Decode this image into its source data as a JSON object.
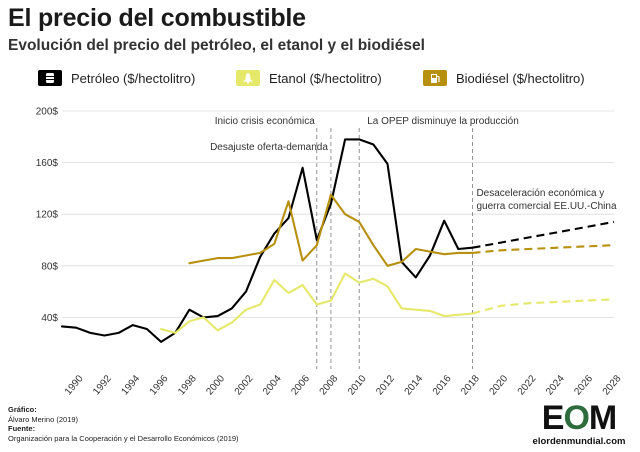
{
  "header": {
    "title": "El precio del combustible",
    "subtitle": "Evolución del precio del petróleo, el etanol y el biodiésel"
  },
  "legend": [
    {
      "label": "Petróleo ($/hectolitro)",
      "color": "#000000",
      "icon": "oil-barrel-icon"
    },
    {
      "label": "Etanol ($/hectolitro)",
      "color": "#e6e86a",
      "icon": "corn-icon"
    },
    {
      "label": "Biodiésel ($/hectolitro)",
      "color": "#b8900f",
      "icon": "fuel-pump-icon"
    }
  ],
  "chart_data": {
    "type": "line",
    "x_range": [
      1989,
      2028
    ],
    "ylim": [
      0,
      200
    ],
    "y_ticks": [
      {
        "value": 40,
        "label": "40$"
      },
      {
        "value": 80,
        "label": "80$"
      },
      {
        "value": 120,
        "label": "120$"
      },
      {
        "value": 160,
        "label": "160$"
      },
      {
        "value": 200,
        "label": "200$"
      }
    ],
    "x_ticks": [
      "1990",
      "1992",
      "1994",
      "1996",
      "1998",
      "2000",
      "2002",
      "2004",
      "2006",
      "2008",
      "2010",
      "2012",
      "2014",
      "2016",
      "2018",
      "2020",
      "2022",
      "2024",
      "2026",
      "2028"
    ],
    "grid": "horizontal",
    "series": [
      {
        "name": "Petróleo ($/hectolitro)",
        "color": "#000000",
        "x": [
          1989,
          1990,
          1991,
          1992,
          1993,
          1994,
          1995,
          1996,
          1997,
          1998,
          1999,
          2000,
          2001,
          2002,
          2003,
          2004,
          2005,
          2006,
          2007,
          2008,
          2009,
          2010,
          2011,
          2012,
          2013,
          2014,
          2015,
          2016,
          2017,
          2018
        ],
        "y": [
          33,
          32,
          28,
          26,
          28,
          34,
          31,
          21,
          28,
          46,
          40,
          41,
          47,
          60,
          87,
          105,
          117,
          156,
          100,
          128,
          178,
          178,
          174,
          159,
          83,
          71,
          88,
          115,
          93,
          94
        ]
      },
      {
        "name": "Etanol ($/hectolitro)",
        "color": "#e6e86a",
        "x": [
          1996,
          1997,
          1998,
          1999,
          2000,
          2001,
          2002,
          2003,
          2004,
          2005,
          2006,
          2007,
          2008,
          2009,
          2010,
          2011,
          2012,
          2013,
          2014,
          2015,
          2016,
          2017,
          2018
        ],
        "y": [
          31,
          28,
          37,
          40,
          30,
          36,
          46,
          50,
          69,
          59,
          65,
          50,
          53,
          74,
          67,
          70,
          64,
          47,
          46,
          45,
          41,
          42,
          43
        ]
      },
      {
        "name": "Biodiésel ($/hectolitro)",
        "color": "#b8900f",
        "x": [
          1998,
          1999,
          2000,
          2001,
          2002,
          2003,
          2004,
          2005,
          2006,
          2007,
          2008,
          2009,
          2010,
          2011,
          2012,
          2013,
          2014,
          2015,
          2016,
          2017,
          2018
        ],
        "y": [
          82,
          84,
          86,
          86,
          88,
          90,
          97,
          130,
          84,
          96,
          135,
          120,
          114,
          96,
          80,
          83,
          93,
          91,
          89,
          90,
          90
        ]
      }
    ],
    "projections": [
      {
        "series": "Petróleo ($/hectolitro)",
        "x": [
          2018,
          2020,
          2022,
          2024,
          2026,
          2028
        ],
        "y": [
          94,
          98,
          102,
          106,
          110,
          114
        ]
      },
      {
        "series": "Etanol ($/hectolitro)",
        "x": [
          2018,
          2020,
          2022,
          2024,
          2026,
          2028
        ],
        "y": [
          43,
          49,
          51,
          52,
          53,
          54
        ]
      },
      {
        "series": "Biodiésel ($/hectolitro)",
        "x": [
          2018,
          2020,
          2022,
          2024,
          2026,
          2028
        ],
        "y": [
          90,
          92,
          93,
          94,
          95,
          96
        ]
      }
    ],
    "annotations": [
      {
        "text": "Inicio crisis económica",
        "x": 2007
      },
      {
        "text": "Desajuste oferta-demanda",
        "x": 2008
      },
      {
        "text": "La OPEP disminuye la producción",
        "x": 2010
      },
      {
        "text": "Desaceleración económica y guerra comercial EE.UU.-China",
        "x": 2018
      }
    ]
  },
  "credits": {
    "grafico_label": "Gráfico:",
    "grafico_value": "Álvaro Merino (2019)",
    "fuente_label": "Fuente:",
    "fuente_value": "Organización para la Cooperación y el Desarrollo Económicos (2019)"
  },
  "logo": {
    "letters": "EOM",
    "url": "elordenmundial.com"
  }
}
